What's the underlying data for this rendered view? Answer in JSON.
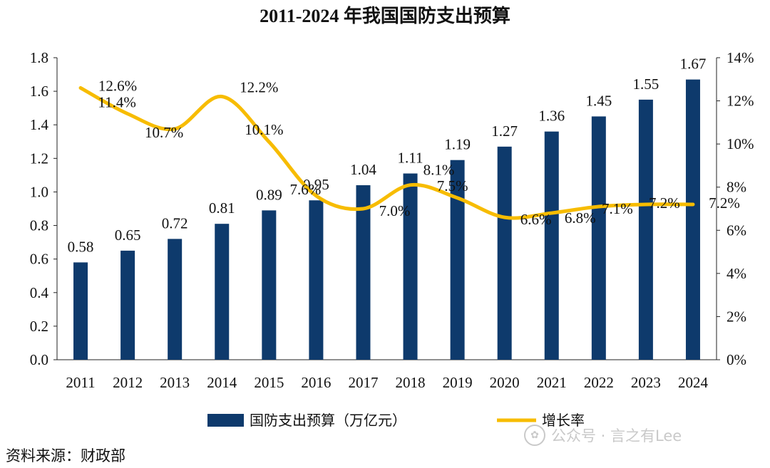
{
  "title": "2011-2024 年我国国防支出预算",
  "source": "资料来源：财政部",
  "watermark": "公众号 · 言之有Lee",
  "colors": {
    "bar": "#0e3a6c",
    "line": "#f7bc00"
  },
  "chart_data": {
    "type": "bar",
    "categories": [
      "2011",
      "2012",
      "2013",
      "2014",
      "2015",
      "2016",
      "2017",
      "2018",
      "2019",
      "2020",
      "2021",
      "2022",
      "2023",
      "2024"
    ],
    "series": [
      {
        "name": "国防支出预算（万亿元）",
        "type": "bar",
        "axis": "left",
        "values": [
          0.58,
          0.65,
          0.72,
          0.81,
          0.89,
          0.95,
          1.04,
          1.11,
          1.19,
          1.27,
          1.36,
          1.45,
          1.55,
          1.67
        ],
        "labels": [
          "0.58",
          "0.65",
          "0.72",
          "0.81",
          "0.89",
          "0.95",
          "1.04",
          "1.11",
          "1.19",
          "1.27",
          "1.36",
          "1.45",
          "1.55",
          "1.67"
        ]
      },
      {
        "name": "增长率",
        "type": "line",
        "axis": "right",
        "smooth": true,
        "values": [
          12.6,
          11.4,
          10.7,
          12.2,
          10.1,
          7.6,
          7.0,
          8.1,
          7.5,
          6.6,
          6.8,
          7.1,
          7.2,
          7.2
        ],
        "labels": [
          "12.6%",
          "11.4%",
          "10.7%",
          "12.2%",
          "10.1%",
          "7.6%",
          "7.0%",
          "8.1%",
          "7.5%",
          "6.6%",
          "6.8%",
          "7.1%",
          "7.2%",
          "7.2%"
        ]
      }
    ],
    "y_left": {
      "min": 0,
      "max": 1.8,
      "ticks": [
        "0.0",
        "0.2",
        "0.4",
        "0.6",
        "0.8",
        "1.0",
        "1.2",
        "1.4",
        "1.6",
        "1.8"
      ]
    },
    "y_right": {
      "min": 0,
      "max": 14,
      "ticks": [
        "0%",
        "2%",
        "4%",
        "6%",
        "8%",
        "10%",
        "12%",
        "14%"
      ]
    },
    "legend_position": "bottom"
  }
}
